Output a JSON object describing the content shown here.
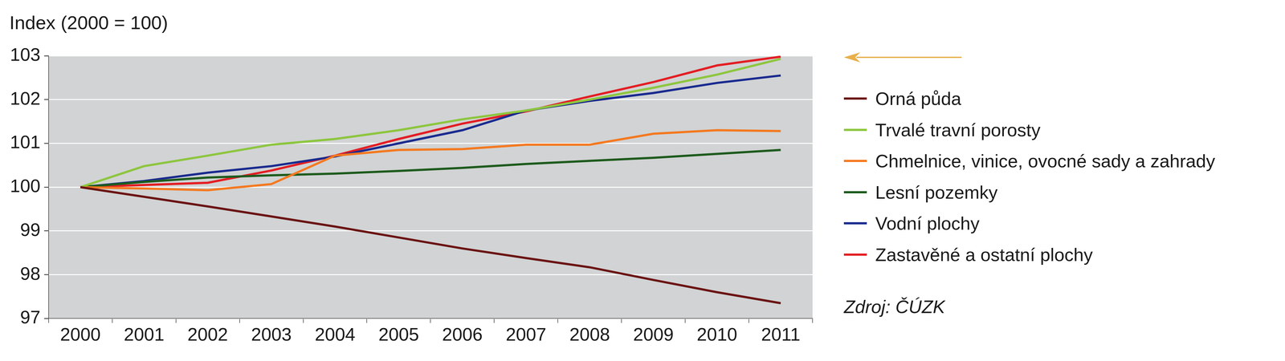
{
  "chart_data": {
    "type": "line",
    "y_label": "Index (2000 = 100)",
    "source": "Zdroj: ČÚZK",
    "categories": [
      "2000",
      "2001",
      "2002",
      "2003",
      "2004",
      "2005",
      "2006",
      "2007",
      "2008",
      "2009",
      "2010",
      "2011"
    ],
    "series": [
      {
        "name": "Orná půda",
        "color": "#6b1414",
        "values": [
          100,
          99.78,
          99.56,
          99.33,
          99.1,
          98.85,
          98.6,
          98.38,
          98.17,
          97.88,
          97.6,
          97.35
        ]
      },
      {
        "name": "Trvalé travní porosty",
        "color": "#8dc63f",
        "values": [
          100,
          100.48,
          100.72,
          100.97,
          101.1,
          101.3,
          101.55,
          101.75,
          102.0,
          102.27,
          102.57,
          102.93
        ]
      },
      {
        "name": "Chmelnice, vinice, ovocné sady a zahrady",
        "color": "#f47920",
        "values": [
          100,
          99.97,
          99.93,
          100.07,
          100.72,
          100.85,
          100.87,
          100.97,
          100.97,
          101.22,
          101.3,
          101.28
        ]
      },
      {
        "name": "Lesní pozemky",
        "color": "#1e5b1e",
        "values": [
          100,
          100.12,
          100.22,
          100.27,
          100.31,
          100.37,
          100.44,
          100.53,
          100.6,
          100.67,
          100.76,
          100.85
        ]
      },
      {
        "name": "Vodní plochy",
        "color": "#1a2b8f",
        "values": [
          100,
          100.14,
          100.33,
          100.48,
          100.7,
          101.0,
          101.3,
          101.75,
          101.97,
          102.15,
          102.38,
          102.55
        ]
      },
      {
        "name": "Zastavěné a ostatní plochy",
        "color": "#e31e24",
        "values": [
          100,
          100.05,
          100.1,
          100.38,
          100.72,
          101.1,
          101.45,
          101.73,
          102.07,
          102.4,
          102.78,
          102.98
        ]
      }
    ],
    "ylim": [
      97,
      103
    ],
    "yticks": [
      97,
      98,
      99,
      100,
      101,
      102,
      103
    ],
    "grid": true,
    "legend": "right"
  }
}
